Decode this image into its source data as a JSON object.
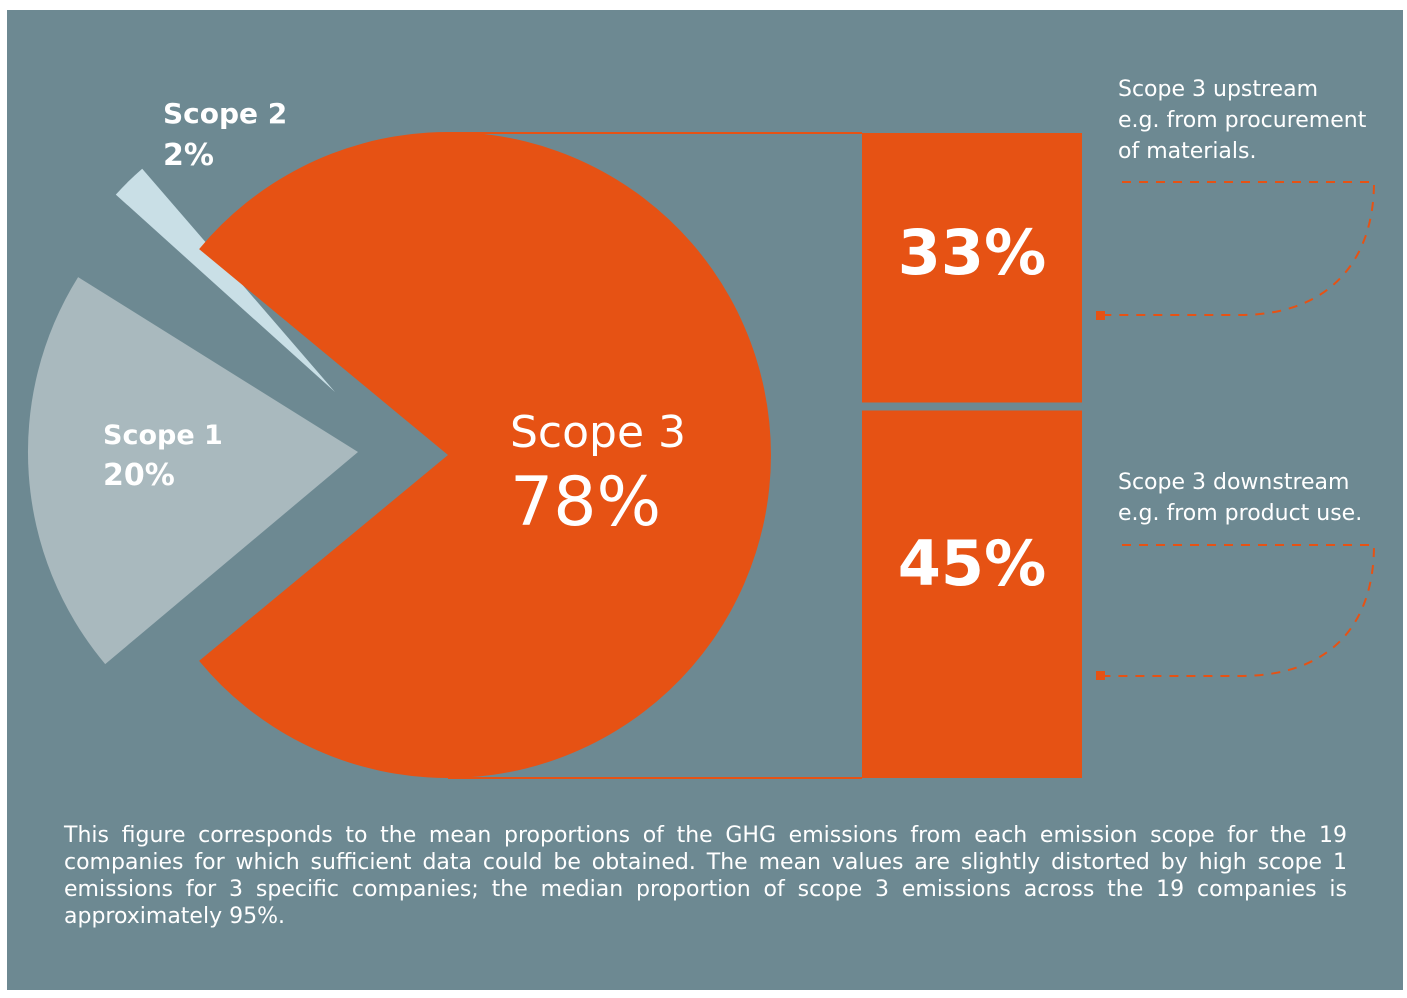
{
  "chart_data": {
    "type": "pie",
    "slices": [
      {
        "label": "Scope 1",
        "value": 20,
        "value_label": "20%",
        "color": "#a9b9be"
      },
      {
        "label": "Scope 2",
        "value": 2,
        "value_label": "2%",
        "color": "#c9dfe6"
      },
      {
        "label": "Scope 3",
        "value": 78,
        "value_label": "78%",
        "color": "#e65214"
      }
    ],
    "breakdown": {
      "of": "Scope 3",
      "type": "stacked-bar",
      "segments": [
        {
          "value": 33,
          "value_label": "33%",
          "description": [
            "Scope 3 upstream",
            "e.g. from procurement",
            "of materials."
          ]
        },
        {
          "value": 45,
          "value_label": "45%",
          "description": [
            "Scope 3 downstream",
            "e.g. from product use."
          ]
        }
      ],
      "color": "#e65214"
    },
    "background": "#6d8992",
    "caption": "This figure corresponds to the mean proportions of the GHG emissions from each emission scope for the 19 companies for which sufficient data could be obtained. The mean values are slightly distorted by high scope 1 emissions for 3 specific companies; the median proportion of scope 3 emissions across the 19 companies is approximately 95%."
  }
}
